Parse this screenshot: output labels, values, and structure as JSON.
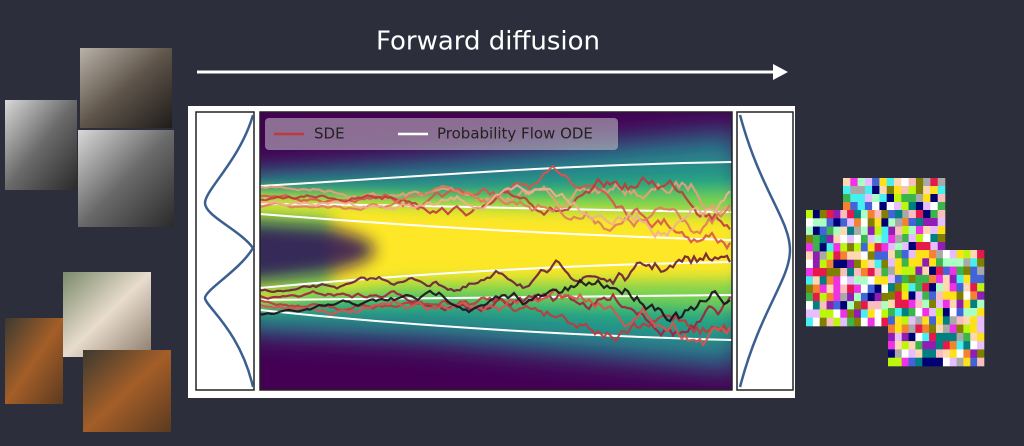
{
  "header": {
    "title": "Forward diffusion"
  },
  "legend": {
    "items": [
      {
        "label": "SDE"
      },
      {
        "label": "Probability Flow ODE"
      }
    ]
  }
}
